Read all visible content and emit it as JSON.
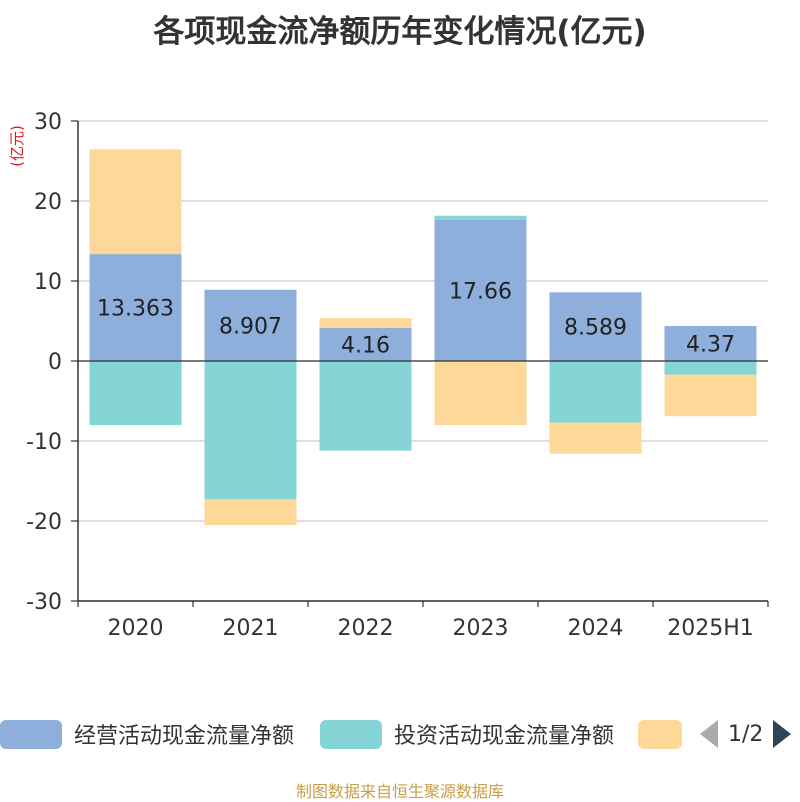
{
  "chart_data": {
    "type": "bar",
    "stacked": true,
    "title": "各项现金流净额历年变化情况(亿元)",
    "ylabel": "(亿元)",
    "ylim": [
      -30,
      30
    ],
    "yticks": [
      30,
      20,
      10,
      0,
      -10,
      -20,
      -30
    ],
    "categories": [
      "2020",
      "2021",
      "2022",
      "2023",
      "2024",
      "2025H1"
    ],
    "grid": true,
    "legend_position": "bottom",
    "series": [
      {
        "name": "经营活动现金流量净额",
        "color": "#8eaedb",
        "values": [
          13.363,
          8.907,
          4.16,
          17.66,
          8.589,
          4.37
        ],
        "data_labels": [
          "13.363",
          "8.907",
          "4.16",
          "17.66",
          "8.589",
          "4.37"
        ]
      },
      {
        "name": "投资活动现金流量净额",
        "color": "#86d5d6",
        "values": [
          -8.0,
          -17.3,
          -11.2,
          0.5,
          -7.7,
          -1.7
        ]
      },
      {
        "name": "",
        "color": "#fed898",
        "values": [
          13.1,
          -3.2,
          1.2,
          -8.0,
          -3.9,
          -5.2
        ]
      }
    ]
  },
  "legend": {
    "pager": "1/2"
  },
  "source_note": "制图数据来自恒生聚源数据库"
}
